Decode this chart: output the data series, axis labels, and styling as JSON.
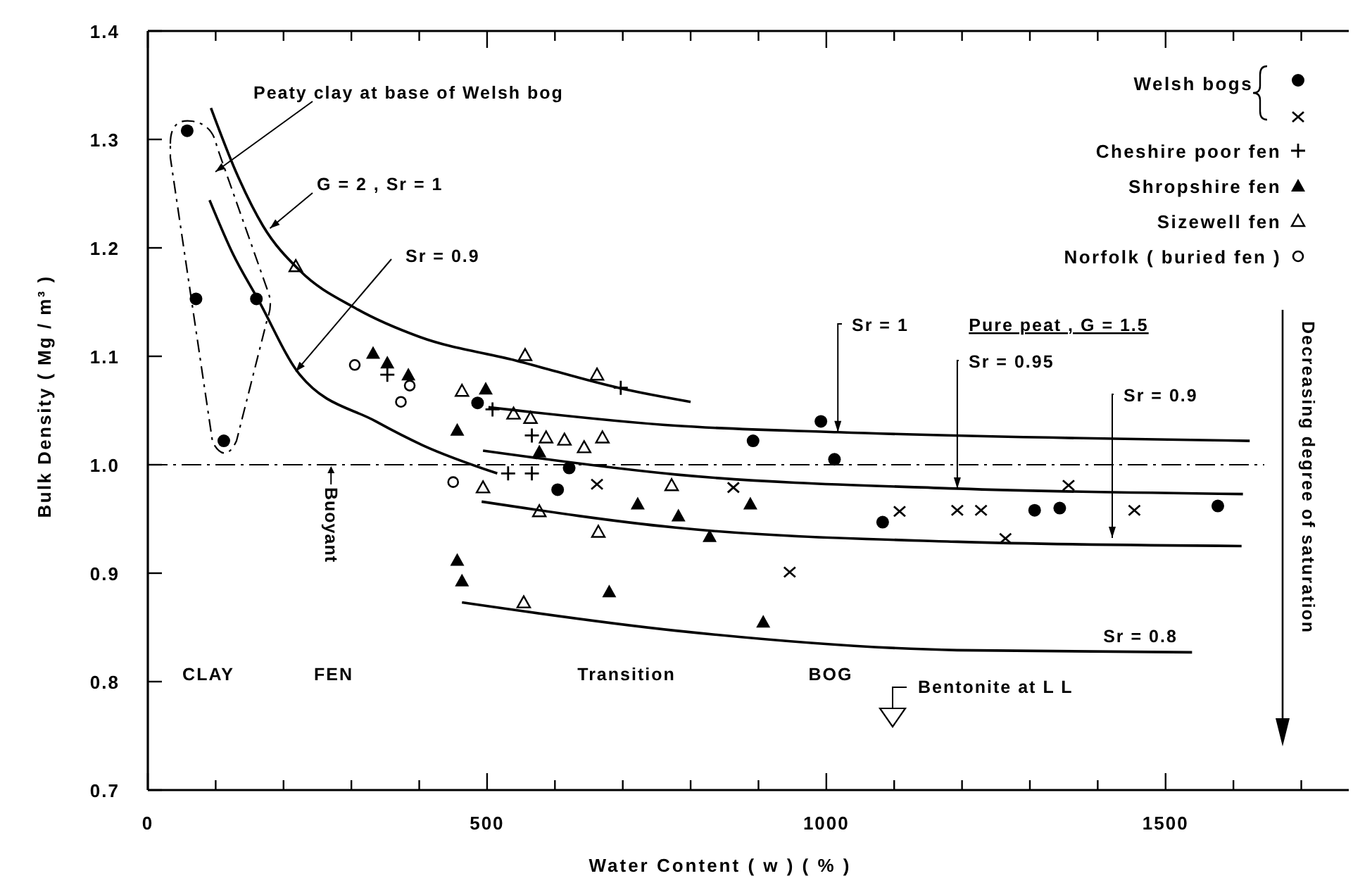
{
  "chart_data": {
    "type": "scatter",
    "xlabel": "Water Content ( w ) ( % )",
    "ylabel": "Bulk Density ( Mg / m³ )",
    "xlim": [
      0,
      1770
    ],
    "ylim": [
      0.7,
      1.4
    ],
    "xticks": [
      0,
      {
        "value": 100,
        "label": null
      },
      {
        "value": 200,
        "label": null
      },
      {
        "value": 300,
        "label": null
      },
      {
        "value": 400,
        "label": null
      },
      500,
      {
        "value": 600,
        "label": null
      },
      {
        "value": 700,
        "label": null
      },
      {
        "value": 800,
        "label": null
      },
      {
        "value": 900,
        "label": null
      },
      1000,
      {
        "value": 1100,
        "label": null
      },
      {
        "value": 1200,
        "label": null
      },
      {
        "value": 1300,
        "label": null
      },
      {
        "value": 1400,
        "label": null
      },
      1500,
      {
        "value": 1600,
        "label": null
      },
      {
        "value": 1700,
        "label": null
      }
    ],
    "yticks": [
      0.7,
      0.8,
      0.9,
      {
        "value": 1,
        "label": "1.0"
      },
      1.1,
      1.2,
      1.3,
      1.4
    ],
    "grid": false,
    "legend": "top right",
    "ref_lines": [
      {
        "axis": "y",
        "value": 1,
        "line_style": "dashed",
        "color": "#000000"
      }
    ],
    "series": [
      {
        "name": "Welsh bogs",
        "marker": "circle",
        "color": "#000000",
        "x": [
          58,
          71,
          112,
          160,
          486,
          604,
          621,
          892,
          992,
          1012,
          1083,
          1307,
          1344,
          1577
        ],
        "values": [
          1.308,
          1.153,
          1.022,
          1.153,
          1.057,
          0.977,
          0.997,
          1.022,
          1.04,
          1.005,
          0.947,
          0.958,
          0.96,
          0.962
        ]
      },
      {
        "marker": "cross",
        "color": "#000000",
        "x": [
          662,
          863,
          946,
          1108,
          1193,
          1228,
          1264,
          1357,
          1454
        ],
        "values": [
          0.982,
          0.979,
          0.901,
          0.957,
          0.958,
          0.958,
          0.932,
          0.981,
          0.958
        ]
      },
      {
        "name": "Cheshire poor fen",
        "marker": "plus",
        "color": "#000000",
        "x": [
          353,
          508,
          531,
          566,
          566,
          697
        ],
        "values": [
          1.083,
          1.051,
          0.992,
          0.992,
          1.027,
          1.071
        ]
      },
      {
        "name": "Shropshire fen",
        "marker": "triangle",
        "color": "#000000",
        "x": [
          332,
          353,
          384,
          456,
          456,
          463,
          498,
          577,
          680,
          722,
          782,
          828,
          888,
          907
        ],
        "values": [
          1.103,
          1.094,
          1.083,
          1.032,
          0.912,
          0.893,
          1.07,
          1.012,
          0.883,
          0.964,
          0.953,
          0.934,
          0.964,
          0.855
        ]
      },
      {
        "name": "Sizewell fen",
        "marker": "triangle-open",
        "color": "#000000",
        "x": [
          218,
          463,
          494,
          539,
          554,
          556,
          564,
          577,
          587,
          614,
          643,
          662,
          664,
          670,
          772
        ],
        "values": [
          1.183,
          1.068,
          0.979,
          1.047,
          0.873,
          1.101,
          1.043,
          0.957,
          1.025,
          1.023,
          1.016,
          1.083,
          0.938,
          1.025,
          0.981
        ]
      },
      {
        "name": "Norfolk ( buried fen )",
        "marker": "circle-open",
        "color": "#000000",
        "x": [
          305,
          373,
          386,
          450
        ],
        "values": [
          1.092,
          1.058,
          1.073,
          0.984
        ]
      },
      {
        "type": "line",
        "marker": "none",
        "line_style": "solid",
        "color": "#000000",
        "x": [
          93,
          130,
          170,
          224,
          307,
          400,
          543,
          700,
          800
        ],
        "values": [
          1.329,
          1.27,
          1.22,
          1.179,
          1.144,
          1.118,
          1.096,
          1.07,
          1.058
        ]
      },
      {
        "type": "line",
        "marker": "none",
        "line_style": "solid",
        "color": "#000000",
        "x": [
          91,
          125,
          162,
          224,
          336,
          405,
          515
        ],
        "values": [
          1.244,
          1.195,
          1.153,
          1.083,
          1.04,
          1.018,
          0.992
        ]
      },
      {
        "type": "line",
        "marker": "none",
        "line_style": "solid",
        "color": "#000000",
        "x": [
          502,
          778,
          1017,
          1624
        ],
        "values": [
          1.053,
          1.036,
          1.03,
          1.022
        ]
      },
      {
        "type": "line",
        "marker": "none",
        "line_style": "solid",
        "color": "#000000",
        "x": [
          494,
          778,
          1193,
          1614
        ],
        "values": [
          1.013,
          0.991,
          0.978,
          0.973
        ]
      },
      {
        "type": "line",
        "marker": "none",
        "line_style": "solid",
        "color": "#000000",
        "x": [
          492,
          778,
          1193,
          1612
        ],
        "values": [
          0.966,
          0.942,
          0.929,
          0.925
        ]
      },
      {
        "type": "line",
        "marker": "none",
        "line_style": "solid",
        "color": "#000000",
        "x": [
          463,
          778,
          1193,
          1539
        ],
        "values": [
          0.873,
          0.847,
          0.829,
          0.827
        ]
      }
    ],
    "annotations": [
      "Peaty clay at base of Welsh bog",
      {
        "text": "G = 2 , Sr = 1",
        "x": 180,
        "y": 1.218
      },
      {
        "text": "Sr = 0.9",
        "x": 218,
        "y": 1.086
      },
      {
        "text": "Sr = 1",
        "x": 1017,
        "y": 1.03
      },
      {
        "text": "Sr = 0.95",
        "x": 1193,
        "y": 0.978
      },
      "Sr = 0.9",
      "Sr = 0.8",
      {
        "text": "Buoyant",
        "x": 270,
        "y": 1.0
      },
      "Bentonite at L L",
      "Pure peat , G = 1.5",
      "CLAY",
      "FEN",
      "Transition",
      "BOG",
      "Decreasing degree of saturation"
    ]
  }
}
